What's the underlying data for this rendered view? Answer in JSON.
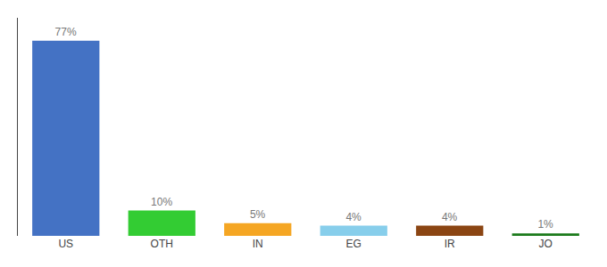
{
  "chart_data": {
    "type": "bar",
    "categories": [
      "US",
      "OTH",
      "IN",
      "EG",
      "IR",
      "JO"
    ],
    "values": [
      77,
      10,
      5,
      4,
      4,
      1
    ],
    "value_labels": [
      "77%",
      "10%",
      "5%",
      "4%",
      "4%",
      "1%"
    ],
    "colors": [
      "#4472c4",
      "#33cc33",
      "#f5a623",
      "#87ceeb",
      "#8b4513",
      "#1a7a1a"
    ],
    "ylim": [
      0,
      86
    ],
    "yticks": [],
    "grid": false,
    "data_labels": true,
    "tick_labels": "x"
  }
}
